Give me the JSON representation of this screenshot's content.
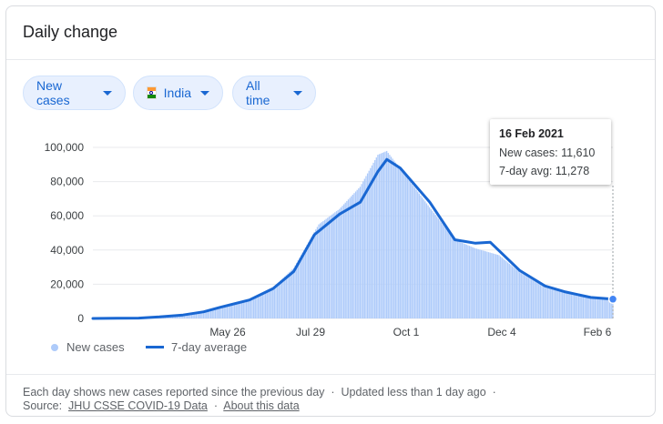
{
  "card": {
    "title": "Daily change"
  },
  "filters": {
    "metric": "New cases",
    "location": "India",
    "period": "All time"
  },
  "tooltip": {
    "date": "16 Feb 2021",
    "new_cases_text": "New cases: 11,610",
    "avg_text": "7-day avg: 11,278"
  },
  "legend": {
    "bars": "New cases",
    "line": "7-day average"
  },
  "footer": {
    "note": "Each day shows new cases reported since the previous day",
    "sep1": "·",
    "updated": "Updated less than 1 day ago",
    "sep2": "·",
    "source_label": "Source:",
    "source_link": "JHU CSSE COVID-19 Data",
    "sep3": "·",
    "about_link": "About this data"
  },
  "colors": {
    "bar": "#aecbfa",
    "line": "#1967d2",
    "grid": "#e8eaed",
    "marker": "#4285f4"
  },
  "chart_data": {
    "type": "bar",
    "title": "",
    "xlabel": "",
    "ylabel": "",
    "ylim": [
      0,
      100000
    ],
    "yticks": [
      0,
      20000,
      40000,
      60000,
      80000,
      100000
    ],
    "ytick_labels": [
      "0",
      "20,000",
      "40,000",
      "60,000",
      "80,000",
      "100,000"
    ],
    "xtick_labels": [
      "May 26",
      "Jul 29",
      "Oct 1",
      "Dec 4",
      "Feb 6"
    ],
    "grid": true,
    "legend_position": "bottom-left",
    "x_range": [
      "2020-03-01",
      "2021-02-16"
    ],
    "series": [
      {
        "name": "New cases",
        "type": "bar",
        "points": [
          [
            "2020-03-01",
            0
          ],
          [
            "2020-04-01",
            400
          ],
          [
            "2020-04-15",
            1100
          ],
          [
            "2020-05-01",
            2100
          ],
          [
            "2020-05-15",
            4200
          ],
          [
            "2020-06-01",
            8200
          ],
          [
            "2020-06-15",
            11500
          ],
          [
            "2020-07-01",
            18000
          ],
          [
            "2020-07-15",
            29500
          ],
          [
            "2020-08-01",
            55000
          ],
          [
            "2020-08-15",
            64000
          ],
          [
            "2020-08-29",
            77000
          ],
          [
            "2020-09-10",
            95700
          ],
          [
            "2020-09-16",
            97900
          ],
          [
            "2020-10-01",
            81000
          ],
          [
            "2020-10-15",
            65000
          ],
          [
            "2020-11-01",
            46000
          ],
          [
            "2020-11-15",
            41000
          ],
          [
            "2020-12-01",
            37000
          ],
          [
            "2020-12-15",
            27000
          ],
          [
            "2021-01-01",
            18000
          ],
          [
            "2021-01-15",
            15000
          ],
          [
            "2021-02-01",
            12000
          ],
          [
            "2021-02-16",
            11610
          ]
        ]
      },
      {
        "name": "7-day average",
        "type": "line",
        "points": [
          [
            "2020-03-01",
            0
          ],
          [
            "2020-04-01",
            200
          ],
          [
            "2020-04-15",
            900
          ],
          [
            "2020-05-01",
            2000
          ],
          [
            "2020-05-15",
            3900
          ],
          [
            "2020-05-26",
            6500
          ],
          [
            "2020-06-15",
            10800
          ],
          [
            "2020-07-01",
            17500
          ],
          [
            "2020-07-15",
            27500
          ],
          [
            "2020-07-29",
            49000
          ],
          [
            "2020-08-15",
            61000
          ],
          [
            "2020-08-29",
            68000
          ],
          [
            "2020-09-10",
            86000
          ],
          [
            "2020-09-16",
            93000
          ],
          [
            "2020-09-25",
            88000
          ],
          [
            "2020-10-15",
            68000
          ],
          [
            "2020-11-01",
            46000
          ],
          [
            "2020-11-15",
            44000
          ],
          [
            "2020-11-25",
            44500
          ],
          [
            "2020-12-15",
            28000
          ],
          [
            "2021-01-01",
            19000
          ],
          [
            "2021-01-15",
            15500
          ],
          [
            "2021-02-01",
            12300
          ],
          [
            "2021-02-16",
            11278
          ]
        ]
      }
    ],
    "highlight_point": {
      "date": "2021-02-16",
      "new_cases": 11610,
      "avg": 11278
    }
  }
}
